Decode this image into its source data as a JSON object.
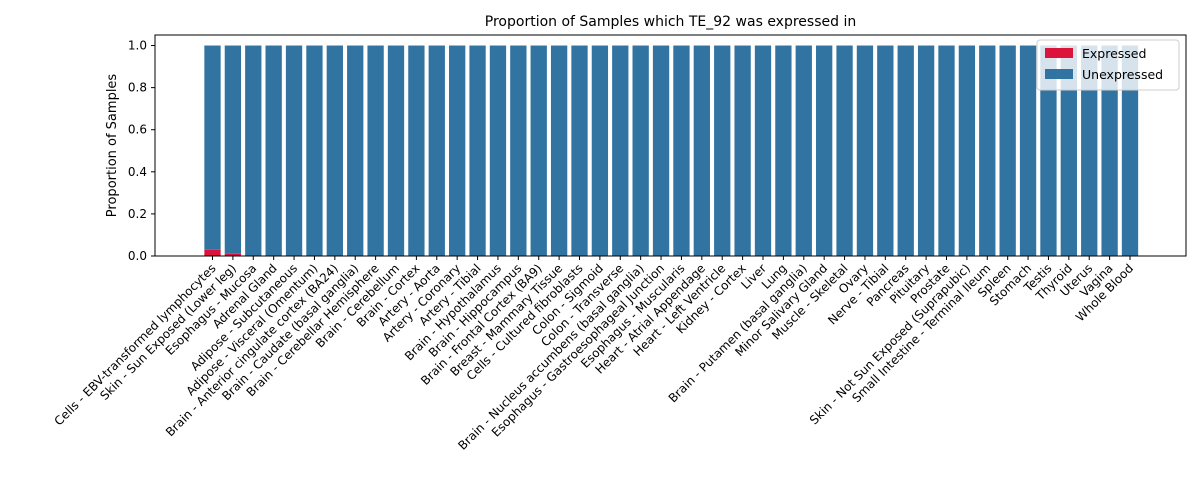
{
  "chart_data": {
    "type": "bar",
    "stacked": true,
    "title": "Proportion of Samples which TE_92 was expressed in",
    "xlabel": "",
    "ylabel": "Proportion of Samples",
    "ylim": [
      0,
      1.05
    ],
    "yticks": [
      "0.0",
      "0.2",
      "0.4",
      "0.6",
      "0.8",
      "1.0"
    ],
    "grid": false,
    "legend_position": "top-right",
    "categories": [
      "Cells - EBV-transformed lymphocytes",
      "Skin - Sun Exposed (Lower leg)",
      "Esophagus - Mucosa",
      "Adrenal Gland",
      "Adipose - Subcutaneous",
      "Adipose - Visceral (Omentum)",
      "Brain - Anterior cingulate cortex (BA24)",
      "Brain - Caudate (basal ganglia)",
      "Brain - Cerebellar Hemisphere",
      "Brain - Cerebellum",
      "Brain - Cortex",
      "Artery - Aorta",
      "Artery - Coronary",
      "Artery - Tibial",
      "Brain - Hypothalamus",
      "Brain - Hippocampus",
      "Brain - Frontal Cortex (BA9)",
      "Breast - Mammary Tissue",
      "Cells - Cultured fibroblasts",
      "Colon - Sigmoid",
      "Colon - Transverse",
      "Brain - Nucleus accumbens (basal ganglia)",
      "Esophagus - Gastroesophageal Junction",
      "Esophagus - Muscularis",
      "Heart - Atrial Appendage",
      "Heart - Left Ventricle",
      "Kidney - Cortex",
      "Liver",
      "Lung",
      "Brain - Putamen (basal ganglia)",
      "Minor Salivary Gland",
      "Muscle - Skeletal",
      "Ovary",
      "Nerve - Tibial",
      "Pancreas",
      "Pituitary",
      "Prostate",
      "Skin - Not Sun Exposed (Suprapubic)",
      "Small Intestine - Terminal Ileum",
      "Spleen",
      "Stomach",
      "Testis",
      "Thyroid",
      "Uterus",
      "Vagina",
      "Whole Blood"
    ],
    "series": [
      {
        "name": "Expressed",
        "color": "#dc143c",
        "values": [
          0.03,
          0.01,
          0,
          0,
          0,
          0,
          0,
          0,
          0,
          0,
          0,
          0,
          0,
          0,
          0,
          0,
          0,
          0,
          0,
          0,
          0,
          0,
          0,
          0,
          0,
          0,
          0,
          0,
          0,
          0,
          0,
          0,
          0,
          0,
          0,
          0,
          0,
          0,
          0,
          0,
          0,
          0,
          0,
          0,
          0,
          0
        ]
      },
      {
        "name": "Unexpressed",
        "color": "#3274a1",
        "values": [
          0.97,
          0.99,
          1,
          1,
          1,
          1,
          1,
          1,
          1,
          1,
          1,
          1,
          1,
          1,
          1,
          1,
          1,
          1,
          1,
          1,
          1,
          1,
          1,
          1,
          1,
          1,
          1,
          1,
          1,
          1,
          1,
          1,
          1,
          1,
          1,
          1,
          1,
          1,
          1,
          1,
          1,
          1,
          1,
          1,
          1,
          1
        ]
      }
    ]
  }
}
